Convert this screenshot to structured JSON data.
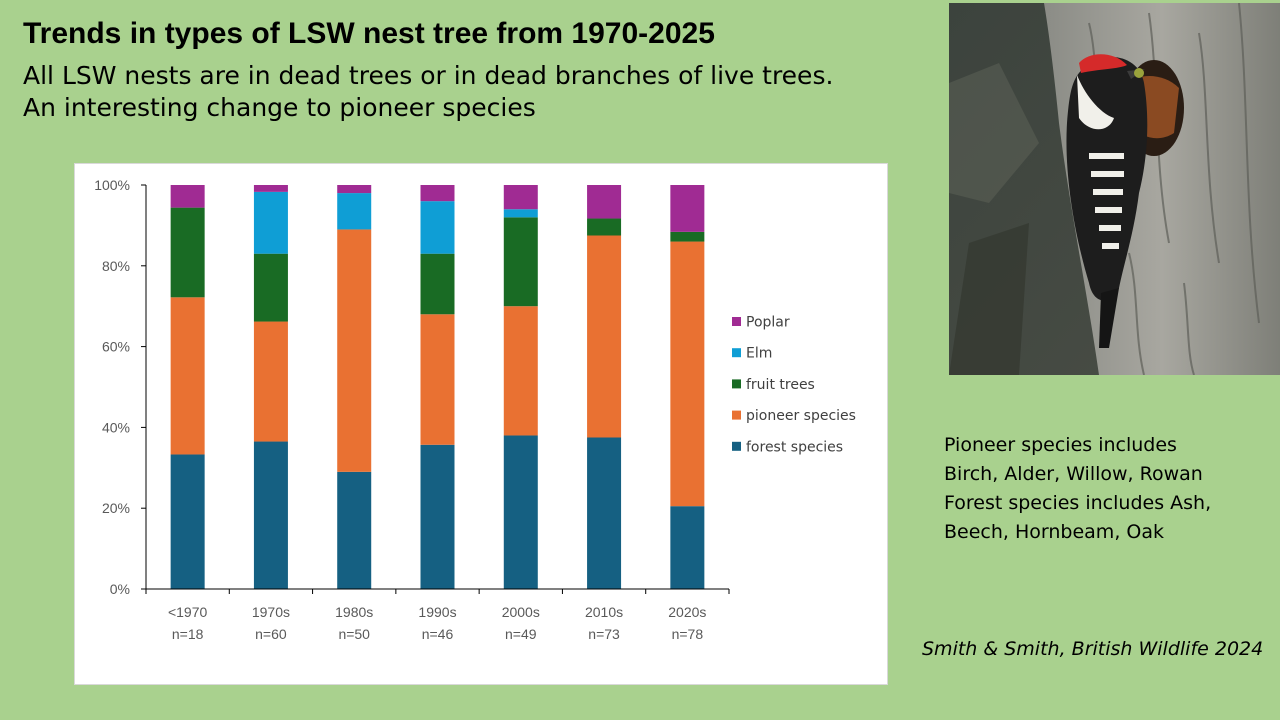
{
  "slide": {
    "title": "Trends in types of LSW nest tree from 1970-2025",
    "subtitle_line1": "All LSW nests are in dead trees or in dead branches of live trees.",
    "subtitle_line2": "An interesting change to pioneer species",
    "notes": [
      "Pioneer species includes",
      "Birch, Alder, Willow, Rowan",
      "Forest species includes Ash,",
      "Beech, Hornbeam, Oak"
    ],
    "citation": "Smith & Smith, British Wildlife 2024",
    "photo_subject": "lesser spotted woodpecker at nest hole in tree trunk",
    "colors": {
      "background": "#a9d18e",
      "forest_species": "#156082",
      "pioneer_species": "#e97132",
      "fruit_trees": "#196b24",
      "elm": "#0f9ed5",
      "poplar": "#a02b93"
    }
  },
  "chart_data": {
    "type": "bar",
    "stacked": true,
    "categories": [
      "<1970",
      "1970s",
      "1980s",
      "1990s",
      "2000s",
      "2010s",
      "2020s"
    ],
    "category_sublabels": [
      "n=18",
      "n=60",
      "n=50",
      "n=46",
      "n=49",
      "n=73",
      "n=78"
    ],
    "series": [
      {
        "name": "forest species",
        "color": "#156082",
        "values": [
          33.3,
          36.5,
          29,
          35.7,
          38,
          37.5,
          20.5
        ]
      },
      {
        "name": "pioneer species",
        "color": "#e97132",
        "values": [
          38.9,
          29.7,
          60,
          32.3,
          32,
          50,
          65.5
        ]
      },
      {
        "name": "fruit trees",
        "color": "#196b24",
        "values": [
          22.2,
          16.8,
          0,
          15,
          22,
          4.2,
          2.4
        ]
      },
      {
        "name": "Elm",
        "color": "#0f9ed5",
        "values": [
          0,
          15.3,
          9,
          13,
          2,
          0,
          0
        ]
      },
      {
        "name": "Poplar",
        "color": "#a02b93",
        "values": [
          5.6,
          1.7,
          2,
          4,
          6,
          8.3,
          11.6
        ]
      }
    ],
    "legend_order": [
      "Poplar",
      "Elm",
      "fruit trees",
      "pioneer species",
      "forest species"
    ],
    "legend_position": "right",
    "ylim": [
      0,
      100
    ],
    "yticks": [
      "0%",
      "20%",
      "40%",
      "60%",
      "80%",
      "100%"
    ],
    "ytick_values": [
      0,
      20,
      40,
      60,
      80,
      100
    ],
    "grid": false,
    "xlabel": "",
    "ylabel": ""
  }
}
